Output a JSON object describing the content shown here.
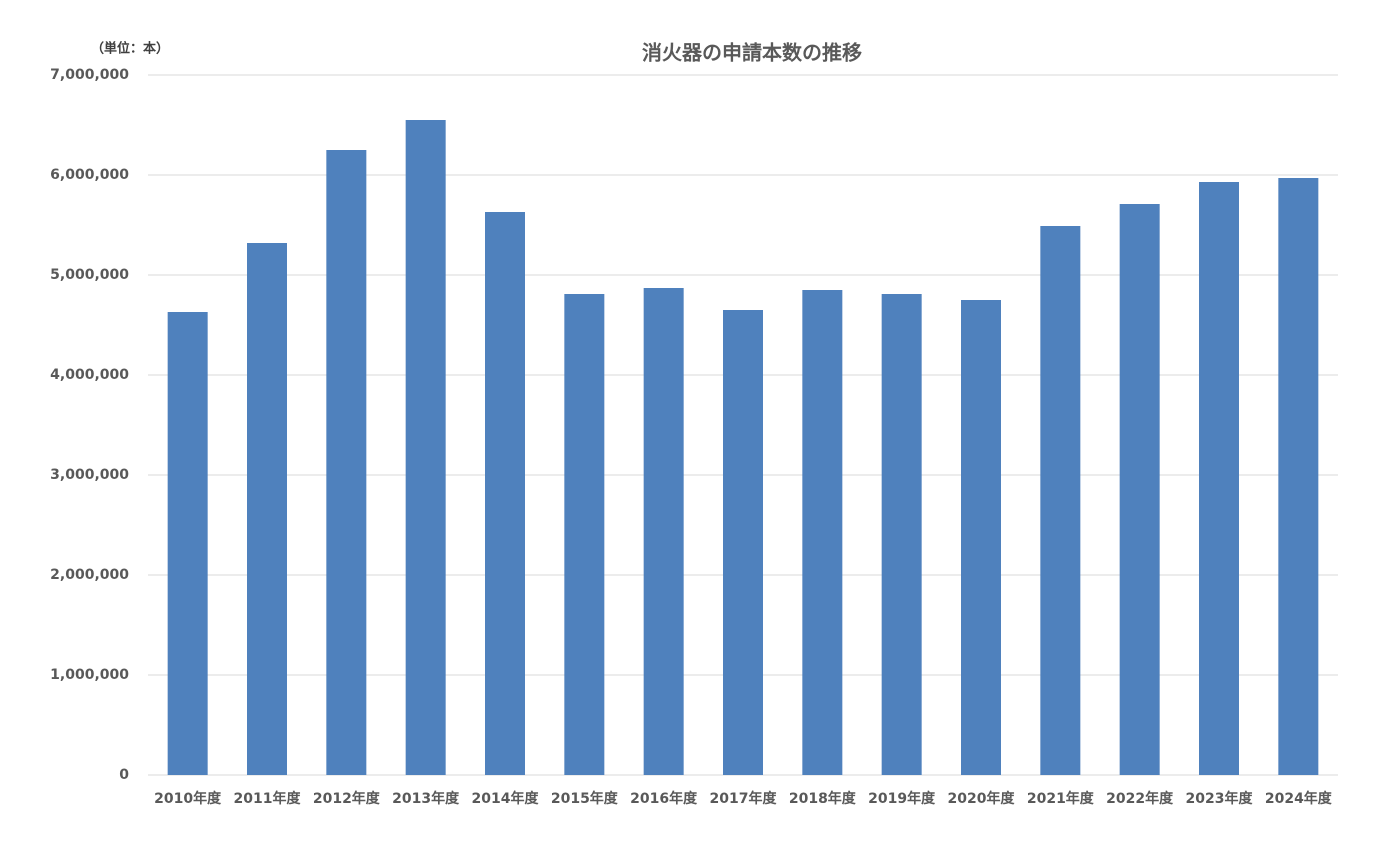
{
  "chart_data": {
    "type": "bar",
    "title": "消火器の申請本数の推移",
    "unit_label": "（単位：本）",
    "categories": [
      "2010年度",
      "2011年度",
      "2012年度",
      "2013年度",
      "2014年度",
      "2015年度",
      "2016年度",
      "2017年度",
      "2018年度",
      "2019年度",
      "2020年度",
      "2021年度",
      "2022年度",
      "2023年度",
      "2024年度"
    ],
    "values": [
      4630000,
      5320000,
      6250000,
      6550000,
      5630000,
      4810000,
      4870000,
      4650000,
      4850000,
      4810000,
      4750000,
      5490000,
      5710000,
      5930000,
      5970000
    ],
    "color": "#4f81bd",
    "ylim": [
      0,
      7000000
    ],
    "yticks": [
      0,
      {
        "value": 1000000,
        "label": "1,000,000"
      },
      {
        "value": 2000000,
        "label": "2,000,000"
      },
      {
        "value": 3000000,
        "label": "3,000,000"
      },
      {
        "value": 4000000,
        "label": "4,000,000"
      },
      {
        "value": 5000000,
        "label": "5,000,000"
      },
      {
        "value": 6000000,
        "label": "6,000,000"
      },
      {
        "value": 7000000,
        "label": "7,000,000"
      }
    ],
    "grid": true
  }
}
